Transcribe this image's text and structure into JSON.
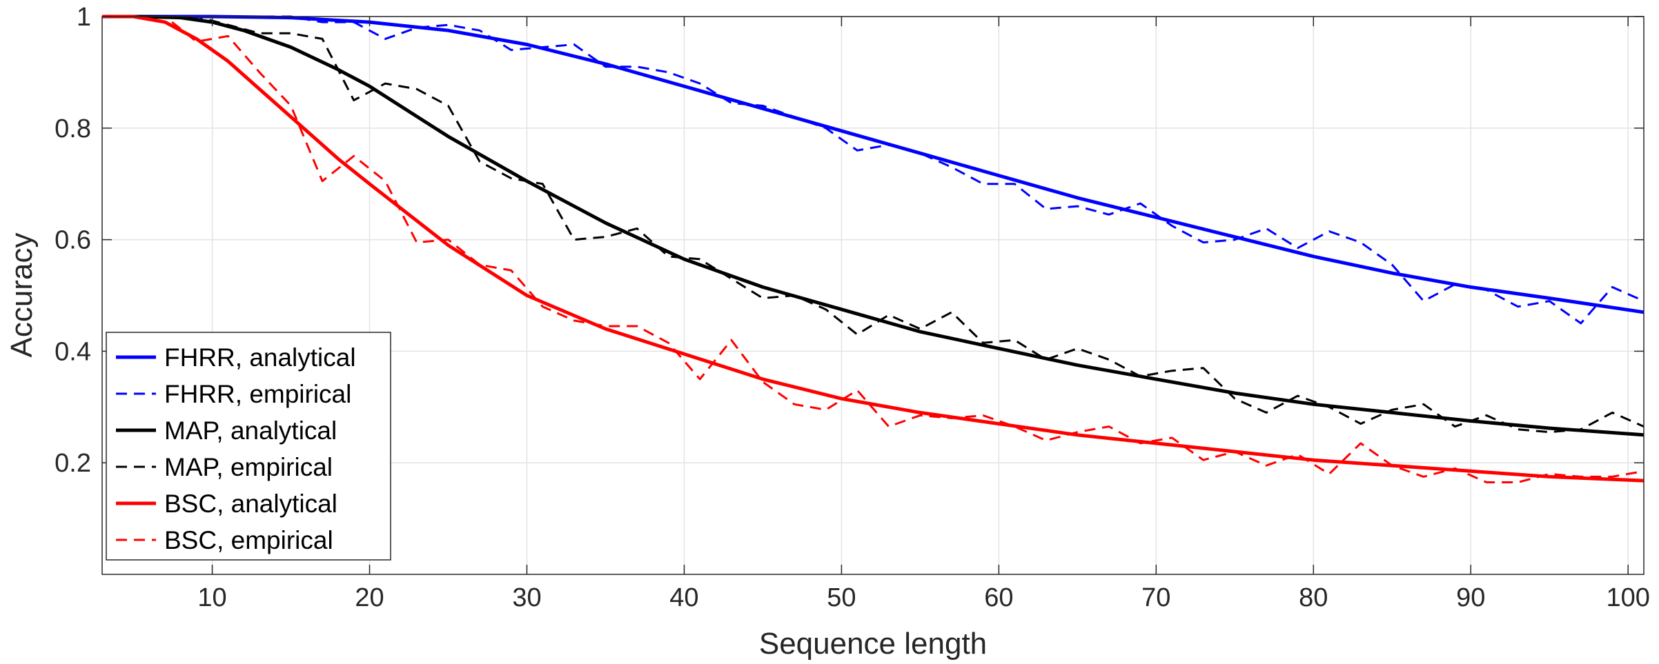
{
  "chart_data": {
    "type": "line",
    "xlabel": "Sequence length",
    "ylabel": "Accuracy",
    "xlim": [
      3,
      101
    ],
    "ylim": [
      0,
      1
    ],
    "xticks": [
      10,
      20,
      30,
      40,
      50,
      60,
      70,
      80,
      90,
      100
    ],
    "xtick_labels": [
      "10",
      "20",
      "30",
      "40",
      "50",
      "60",
      "70",
      "80",
      "90",
      "100"
    ],
    "yticks": [
      0.2,
      0.4,
      0.6,
      0.8,
      1
    ],
    "ytick_labels": [
      "0.2",
      "0.4",
      "0.6",
      "0.8",
      "1"
    ],
    "grid": true,
    "legend_position": "bottom-left",
    "series": [
      {
        "name": "FHRR, analytical",
        "color": "#0000ff",
        "style": "solid",
        "x": [
          3,
          5,
          10,
          15,
          20,
          25,
          30,
          35,
          40,
          45,
          50,
          55,
          60,
          65,
          70,
          75,
          80,
          85,
          90,
          95,
          101
        ],
        "y": [
          1.0,
          1.0,
          1.0,
          0.998,
          0.99,
          0.975,
          0.95,
          0.915,
          0.875,
          0.835,
          0.795,
          0.755,
          0.715,
          0.675,
          0.64,
          0.605,
          0.57,
          0.54,
          0.515,
          0.495,
          0.47
        ]
      },
      {
        "name": "FHRR, empirical",
        "color": "#0000ff",
        "style": "dashed",
        "x": [
          3,
          5,
          7,
          9,
          11,
          13,
          15,
          17,
          19,
          21,
          23,
          25,
          27,
          29,
          31,
          33,
          35,
          37,
          39,
          41,
          43,
          45,
          47,
          49,
          51,
          53,
          55,
          57,
          59,
          61,
          63,
          65,
          67,
          69,
          71,
          73,
          75,
          77,
          79,
          81,
          83,
          85,
          87,
          89,
          91,
          93,
          95,
          97,
          99,
          101
        ],
        "y": [
          1.0,
          1.0,
          1.0,
          1.0,
          1.0,
          1.0,
          1.0,
          0.99,
          0.99,
          0.96,
          0.98,
          0.985,
          0.975,
          0.94,
          0.945,
          0.95,
          0.91,
          0.91,
          0.9,
          0.88,
          0.845,
          0.84,
          0.82,
          0.8,
          0.76,
          0.77,
          0.755,
          0.73,
          0.7,
          0.7,
          0.655,
          0.66,
          0.645,
          0.665,
          0.625,
          0.595,
          0.6,
          0.62,
          0.585,
          0.615,
          0.595,
          0.555,
          0.49,
          0.52,
          0.51,
          0.48,
          0.49,
          0.45,
          0.515,
          0.49
        ]
      },
      {
        "name": "MAP, analytical",
        "color": "#000000",
        "style": "solid",
        "x": [
          3,
          5,
          8,
          10,
          12,
          15,
          18,
          20,
          25,
          30,
          35,
          40,
          45,
          50,
          55,
          60,
          65,
          70,
          75,
          80,
          85,
          90,
          95,
          101
        ],
        "y": [
          1.0,
          1.0,
          0.998,
          0.99,
          0.975,
          0.945,
          0.905,
          0.875,
          0.785,
          0.705,
          0.63,
          0.565,
          0.515,
          0.475,
          0.435,
          0.405,
          0.375,
          0.35,
          0.325,
          0.305,
          0.29,
          0.275,
          0.262,
          0.25
        ]
      },
      {
        "name": "MAP, empirical",
        "color": "#000000",
        "style": "dashed",
        "x": [
          3,
          5,
          7,
          9,
          11,
          13,
          15,
          17,
          19,
          21,
          23,
          25,
          27,
          29,
          31,
          33,
          35,
          37,
          39,
          41,
          43,
          45,
          47,
          49,
          51,
          53,
          55,
          57,
          59,
          61,
          63,
          65,
          67,
          69,
          71,
          73,
          75,
          77,
          79,
          81,
          83,
          85,
          87,
          89,
          91,
          93,
          95,
          97,
          99,
          101
        ],
        "y": [
          1.0,
          1.0,
          1.0,
          1.0,
          0.985,
          0.97,
          0.97,
          0.96,
          0.85,
          0.88,
          0.87,
          0.84,
          0.74,
          0.71,
          0.7,
          0.6,
          0.605,
          0.62,
          0.57,
          0.565,
          0.53,
          0.495,
          0.5,
          0.475,
          0.43,
          0.465,
          0.44,
          0.47,
          0.415,
          0.42,
          0.385,
          0.405,
          0.385,
          0.355,
          0.365,
          0.37,
          0.315,
          0.29,
          0.32,
          0.3,
          0.27,
          0.295,
          0.305,
          0.265,
          0.285,
          0.26,
          0.255,
          0.26,
          0.29,
          0.265
        ]
      },
      {
        "name": "BSC, analytical",
        "color": "#ff0000",
        "style": "solid",
        "x": [
          3,
          5,
          7,
          9,
          11,
          13,
          15,
          18,
          20,
          25,
          30,
          35,
          40,
          45,
          50,
          55,
          60,
          65,
          70,
          75,
          80,
          85,
          90,
          95,
          101
        ],
        "y": [
          1.0,
          1.0,
          0.99,
          0.96,
          0.92,
          0.87,
          0.82,
          0.745,
          0.7,
          0.59,
          0.5,
          0.44,
          0.395,
          0.35,
          0.315,
          0.29,
          0.27,
          0.25,
          0.235,
          0.22,
          0.205,
          0.195,
          0.185,
          0.175,
          0.168
        ]
      },
      {
        "name": "BSC, empirical",
        "color": "#ff0000",
        "style": "dashed",
        "x": [
          3,
          5,
          7,
          9,
          11,
          13,
          15,
          17,
          19,
          21,
          23,
          25,
          27,
          29,
          31,
          33,
          35,
          37,
          39,
          41,
          43,
          45,
          47,
          49,
          51,
          53,
          55,
          57,
          59,
          61,
          63,
          65,
          67,
          69,
          71,
          73,
          75,
          77,
          79,
          81,
          83,
          85,
          87,
          89,
          91,
          93,
          95,
          97,
          99,
          101
        ],
        "y": [
          1.0,
          1.0,
          1.0,
          0.955,
          0.965,
          0.9,
          0.84,
          0.705,
          0.75,
          0.705,
          0.595,
          0.6,
          0.555,
          0.545,
          0.48,
          0.455,
          0.445,
          0.445,
          0.415,
          0.35,
          0.42,
          0.345,
          0.305,
          0.295,
          0.33,
          0.265,
          0.285,
          0.28,
          0.285,
          0.265,
          0.24,
          0.255,
          0.265,
          0.235,
          0.245,
          0.205,
          0.22,
          0.195,
          0.215,
          0.18,
          0.235,
          0.195,
          0.175,
          0.19,
          0.165,
          0.165,
          0.18,
          0.175,
          0.175,
          0.185
        ]
      }
    ]
  }
}
